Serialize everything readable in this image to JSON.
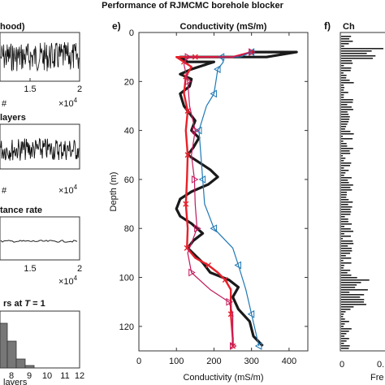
{
  "figure": {
    "title": "Performance of RJMCMC borehole blocker"
  },
  "left": {
    "panel1": {
      "title_fragment": "hood)",
      "tick_labels": [
        "1.5",
        "2"
      ],
      "hash": "#",
      "exp": "×10",
      "exp_pow": "4"
    },
    "panel2": {
      "title_fragment": "layers",
      "tick_labels": [],
      "hash": "#",
      "exp": "×10",
      "exp_pow": "4"
    },
    "panel3": {
      "title_fragment": "tance rate",
      "tick_labels": [
        "1.5",
        "2"
      ],
      "hash": "#",
      "exp": "×10",
      "exp_pow": "4"
    },
    "panel4": {
      "title_fragment": "rs at T = 1",
      "title_prefix": "rs at ",
      "title_italic": "T",
      "title_suffix": " = 1",
      "tick_labels": [
        "8",
        "9",
        "10",
        "11",
        "12"
      ],
      "xlabel_fragment": "layers"
    }
  },
  "right": {
    "label": "f)",
    "title_fragment": "Ch",
    "tick_fragment": "0",
    "tick_fragment2": "0.",
    "xlabel_fragment": "Fre"
  },
  "chart_data": {
    "type": "line",
    "panel_label": "e)",
    "title": "Conductivity (mS/m)",
    "xlabel": "Conductivity (mS/m)",
    "ylabel": "Depth (m)",
    "xlim": [
      0,
      450
    ],
    "ylim": [
      130,
      0
    ],
    "xticks": [
      0,
      100,
      200,
      300,
      400
    ],
    "yticks": [
      0,
      20,
      40,
      60,
      80,
      100,
      120
    ],
    "y_reversed": true,
    "x_axis_position": "both",
    "series": [
      {
        "color": "#1a1a1a",
        "marker": "none",
        "points": [
          [
            300,
            8
          ],
          [
            420,
            8
          ],
          [
            340,
            10
          ],
          [
            220,
            10
          ],
          [
            110,
            10
          ],
          [
            130,
            12
          ],
          [
            200,
            12
          ],
          [
            140,
            15
          ],
          [
            110,
            17
          ],
          [
            140,
            19
          ],
          [
            135,
            22
          ],
          [
            110,
            25
          ],
          [
            120,
            30
          ],
          [
            135,
            33
          ],
          [
            150,
            36
          ],
          [
            140,
            40
          ],
          [
            160,
            43
          ],
          [
            145,
            47
          ],
          [
            130,
            50
          ],
          [
            160,
            53
          ],
          [
            190,
            56
          ],
          [
            210,
            59
          ],
          [
            185,
            62
          ],
          [
            140,
            65
          ],
          [
            110,
            68
          ],
          [
            100,
            72
          ],
          [
            110,
            75
          ],
          [
            140,
            78
          ],
          [
            170,
            82
          ],
          [
            145,
            85
          ],
          [
            130,
            88
          ],
          [
            150,
            91
          ],
          [
            170,
            94
          ],
          [
            190,
            98
          ],
          [
            240,
            101
          ],
          [
            265,
            104
          ],
          [
            250,
            108
          ],
          [
            265,
            113
          ],
          [
            295,
            118
          ],
          [
            305,
            124
          ],
          [
            330,
            128
          ]
        ]
      },
      {
        "color": "#e8202a",
        "marker": "x",
        "points": [
          [
            300,
            8
          ],
          [
            250,
            10
          ],
          [
            150,
            10
          ],
          [
            100,
            10
          ],
          [
            120,
            12
          ],
          [
            140,
            14
          ],
          [
            125,
            18
          ],
          [
            120,
            25
          ],
          [
            130,
            32
          ],
          [
            125,
            40
          ],
          [
            130,
            50
          ],
          [
            128,
            60
          ],
          [
            125,
            70
          ],
          [
            130,
            80
          ],
          [
            128,
            88
          ],
          [
            150,
            92
          ],
          [
            185,
            95
          ],
          [
            210,
            98
          ],
          [
            230,
            101
          ],
          [
            245,
            105
          ],
          [
            245,
            115
          ],
          [
            250,
            125
          ],
          [
            250,
            128
          ]
        ]
      },
      {
        "color": "#1f78b4",
        "marker": "triangle-left",
        "points": [
          [
            300,
            8
          ],
          [
            270,
            10
          ],
          [
            220,
            10
          ],
          [
            225,
            12
          ],
          [
            210,
            15
          ],
          [
            205,
            20
          ],
          [
            200,
            25
          ],
          [
            180,
            30
          ],
          [
            160,
            40
          ],
          [
            165,
            50
          ],
          [
            170,
            60
          ],
          [
            175,
            70
          ],
          [
            200,
            80
          ],
          [
            250,
            88
          ],
          [
            265,
            95
          ],
          [
            285,
            105
          ],
          [
            300,
            115
          ],
          [
            315,
            125
          ],
          [
            320,
            128
          ]
        ]
      },
      {
        "color": "#c2185b",
        "marker": "triangle-right",
        "points": [
          [
            300,
            8
          ],
          [
            250,
            10
          ],
          [
            130,
            10
          ],
          [
            120,
            13
          ],
          [
            130,
            20
          ],
          [
            135,
            30
          ],
          [
            150,
            40
          ],
          [
            140,
            50
          ],
          [
            148,
            60
          ],
          [
            150,
            70
          ],
          [
            155,
            80
          ],
          [
            130,
            90
          ],
          [
            140,
            98
          ],
          [
            190,
            105
          ],
          [
            240,
            110
          ],
          [
            250,
            115
          ],
          [
            250,
            128
          ]
        ]
      }
    ]
  }
}
